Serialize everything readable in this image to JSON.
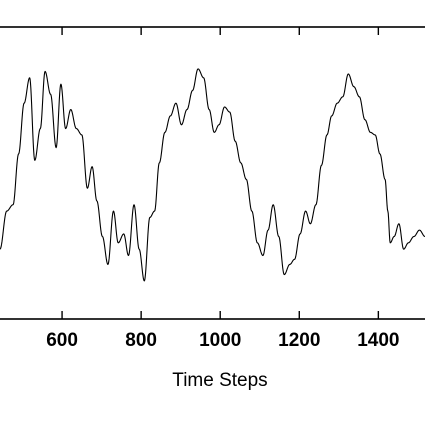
{
  "chart_data": {
    "type": "line",
    "title": "",
    "xlabel": "Time Steps",
    "ylabel": "",
    "xlim": [
      443,
      1518
    ],
    "ylim": [
      -1.15,
      1.15
    ],
    "x_ticks": [
      600,
      800,
      1000,
      1200,
      1400
    ],
    "grid": false,
    "legend": "none",
    "line_color": "#000000",
    "series": [
      {
        "x": [
          443,
          460,
          476,
          490,
          504,
          518,
          531,
          545,
          557,
          571,
          585,
          597,
          609,
          622,
          636,
          650,
          664,
          676,
          688,
          702,
          716,
          730,
          742,
          756,
          768,
          782,
          795,
          808,
          822,
          834,
          846,
          860,
          874,
          888,
          902,
          916,
          930,
          944,
          958,
          972,
          985,
          997,
          1011,
          1024,
          1038,
          1052,
          1066,
          1080,
          1094,
          1108,
          1121,
          1134,
          1148,
          1162,
          1176,
          1188,
          1202,
          1216,
          1228,
          1242,
          1256,
          1270,
          1282,
          1296,
          1310,
          1324,
          1338,
          1352,
          1366,
          1380,
          1392,
          1404,
          1417,
          1424,
          1430,
          1440,
          1452,
          1464,
          1476,
          1490,
          1504,
          1518
        ],
        "y": [
          -0.6,
          -0.3,
          -0.25,
          0.15,
          0.55,
          0.75,
          0.1,
          0.35,
          0.8,
          0.62,
          0.2,
          0.7,
          0.35,
          0.5,
          0.35,
          0.3,
          -0.12,
          0.05,
          -0.22,
          -0.5,
          -0.72,
          -0.3,
          -0.55,
          -0.48,
          -0.65,
          -0.25,
          -0.6,
          -0.85,
          -0.35,
          -0.3,
          0.08,
          0.32,
          0.45,
          0.55,
          0.38,
          0.5,
          0.65,
          0.82,
          0.75,
          0.5,
          0.32,
          0.38,
          0.52,
          0.48,
          0.25,
          0.08,
          -0.05,
          -0.3,
          -0.55,
          -0.65,
          -0.45,
          -0.25,
          -0.5,
          -0.8,
          -0.72,
          -0.68,
          -0.48,
          -0.3,
          -0.4,
          -0.25,
          0.06,
          0.3,
          0.45,
          0.55,
          0.6,
          0.78,
          0.68,
          0.6,
          0.42,
          0.32,
          0.3,
          0.15,
          -0.05,
          -0.3,
          -0.55,
          -0.5,
          -0.4,
          -0.6,
          -0.55,
          -0.5,
          -0.45,
          -0.5
        ]
      }
    ]
  }
}
